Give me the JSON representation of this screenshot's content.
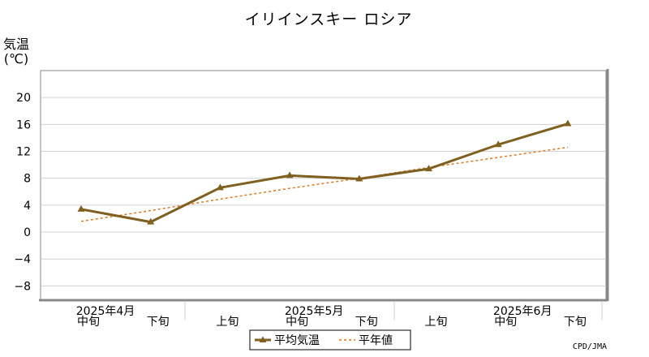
{
  "chart_data": {
    "type": "line",
    "title": "イリインスキー ロシア",
    "ylabel": "気温",
    "yunit": "(℃)",
    "ylim": [
      -10,
      24
    ],
    "yticks": [
      -8,
      -4,
      0,
      4,
      8,
      12,
      16,
      20
    ],
    "grid": true,
    "months": [
      "2025年4月",
      "2025年5月",
      "2025年6月"
    ],
    "categories": [
      "中旬",
      "下旬",
      "上旬",
      "中旬",
      "下旬",
      "上旬",
      "中旬",
      "下旬"
    ],
    "series": [
      {
        "name": "平均気温",
        "values": [
          3.4,
          1.5,
          6.6,
          8.4,
          7.9,
          9.4,
          13.0,
          16.1
        ],
        "color": "#806020",
        "style": "solid",
        "marker": "triangle"
      },
      {
        "name": "平年値",
        "values": [
          1.6,
          3.2,
          4.9,
          6.5,
          8.0,
          9.6,
          11.1,
          12.6
        ],
        "color": "#e07820",
        "style": "dashed"
      }
    ],
    "legend_position": "bottom-center",
    "credit": "CPD/JMA"
  }
}
